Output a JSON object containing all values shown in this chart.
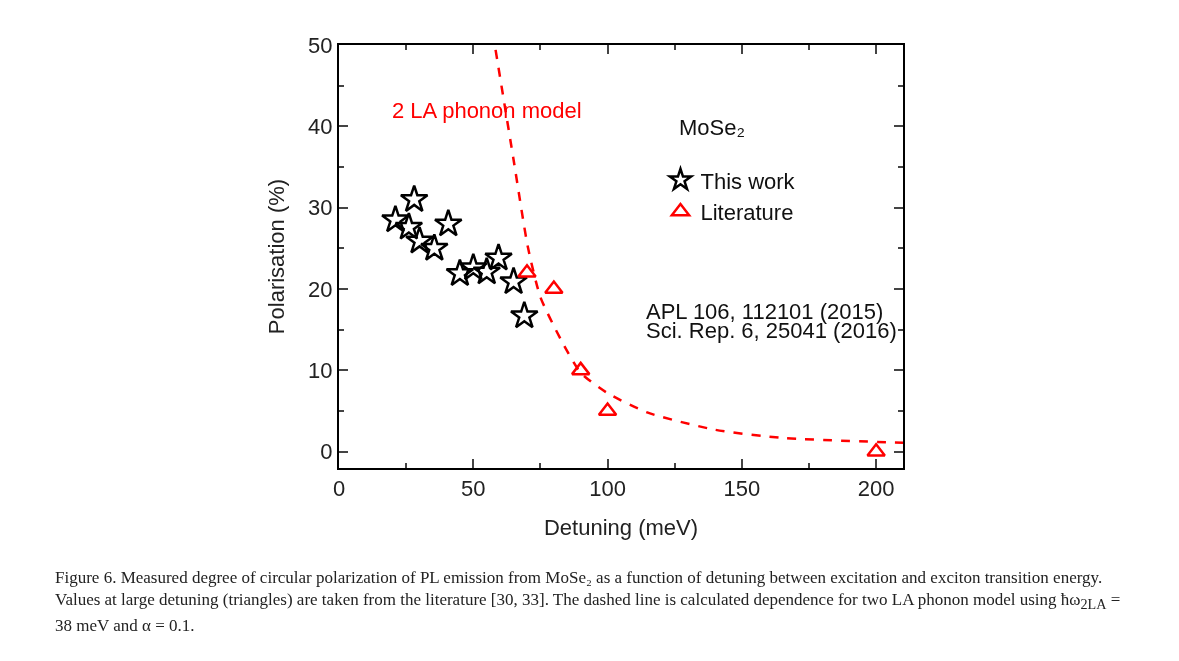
{
  "chart_data": {
    "type": "scatter",
    "xlabel": "Detuning (meV)",
    "ylabel": "Polarisation (%)",
    "xlim": [
      0,
      210
    ],
    "xticks": [
      0,
      50,
      100,
      150,
      200
    ],
    "ylim": [
      -2,
      50
    ],
    "yticks": [
      0,
      10,
      20,
      30,
      40,
      50
    ],
    "grid": false,
    "legend": "top right",
    "series": [
      {
        "name": "This work",
        "type": "scatter",
        "marker": "star",
        "color": "#000000",
        "x": [
          21,
          28,
          26,
          30,
          35.5,
          40.7,
          45,
          50,
          55,
          59.4,
          65,
          69
        ],
        "values": [
          28.5,
          31,
          27.6,
          25.9,
          25,
          28,
          21.9,
          22.6,
          22.1,
          23.8,
          20.9,
          16.7
        ]
      },
      {
        "name": "Literature",
        "type": "scatter",
        "marker": "triangle",
        "color": "#ff0000",
        "x": [
          70,
          80,
          90,
          100,
          200
        ],
        "values": [
          22,
          20,
          10,
          5,
          0
        ]
      },
      {
        "name": "2 LA phonon model",
        "type": "line",
        "marker": "none",
        "line_style": "dashed",
        "color": "#ff0000",
        "x": [
          58.3,
          65,
          70.3,
          75,
          82.6,
          90,
          100,
          115,
          140,
          165,
          210
        ],
        "values": [
          49.4,
          35.9,
          25.2,
          19,
          13.8,
          9.7,
          7.2,
          4.8,
          2.7,
          1.7,
          1.1
        ]
      }
    ],
    "annotations": [
      {
        "text": "MoSe₂"
      },
      {
        "text": "APL 106, 112101 (2015)"
      },
      {
        "text": "Sci. Rep. 6, 25041 (2016)"
      },
      {
        "text": "Figure 6.  Measured degree of circular polarization of PL emission from MoSe₂ as a function of detuning between excitation and exciton transition energy. Values at large detuning (triangles) are taken from the literature [30, 33]. The dashed line is calculated dependence for two LA phonon model using ħω$_{2LA}$ = 38 meV and α = 0.1."
      }
    ]
  }
}
